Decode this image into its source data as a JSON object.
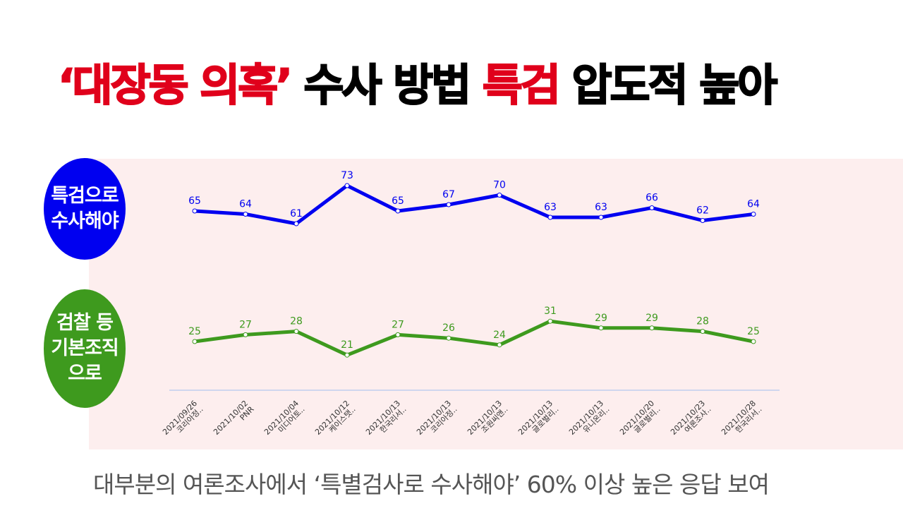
{
  "title": {
    "part1": "‘대장동 의혹’",
    "part2": " 수사 방법 ",
    "part3": "특검",
    "part4": " 압도적 높아"
  },
  "badges": {
    "special": "특검으로\n수사해야",
    "regular": "검찰 등\n기본조직\n으로"
  },
  "subtitle": "대부분의 여론조사에서  ‘특별검사로 수사해야’ 60% 이상 높은 응답 보여",
  "colors": {
    "blue": "#0000f0",
    "green": "#3e9a1e",
    "title_red": "#e0001b"
  },
  "chart_data": {
    "type": "line",
    "categories": [
      "2021/09/26 코리아정..",
      "2021/10/02 PNR",
      "2021/10/04 미디어토..",
      "2021/10/12 케이스탯..",
      "2021/10/13 한국리서..",
      "2021/10/13 코리아정..",
      "2021/10/13 조원씨앤..",
      "2021/10/13 글로벌리..",
      "2021/10/13 유니온리..",
      "2021/10/20 글로벌리..",
      "2021/10/23 여론조사..",
      "2021/10/28 한국리서.."
    ],
    "series": [
      {
        "name": "특검으로 수사해야",
        "color": "#0000f0",
        "values": [
          65,
          64,
          61,
          73,
          65,
          67,
          70,
          63,
          63,
          66,
          62,
          64
        ]
      },
      {
        "name": "검찰 등 기본조직으로",
        "color": "#3e9a1e",
        "values": [
          25,
          27,
          28,
          21,
          27,
          26,
          24,
          31,
          29,
          29,
          28,
          25
        ]
      }
    ],
    "grid": false,
    "legend": "left"
  }
}
